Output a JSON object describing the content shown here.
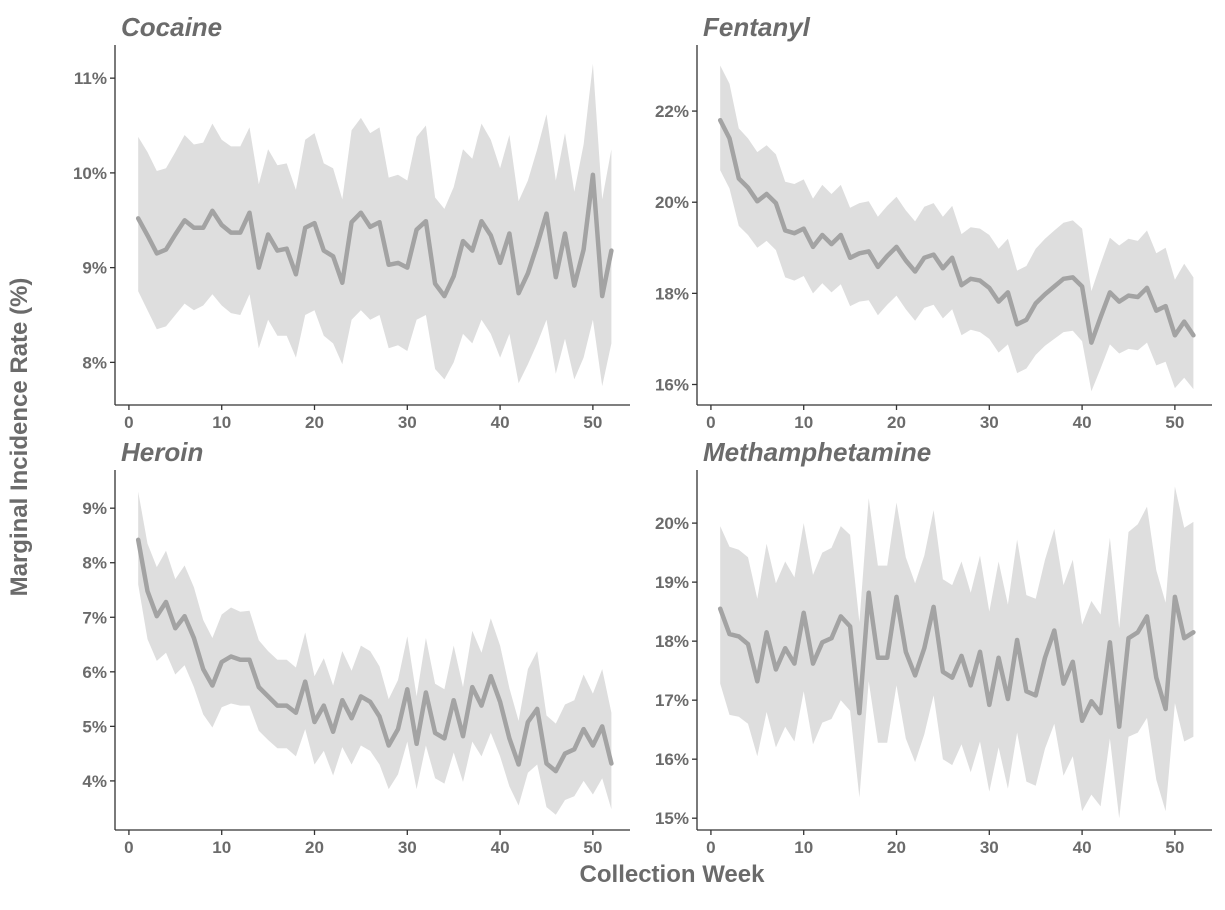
{
  "figure": {
    "xlabel": "Collection Week",
    "ylabel": "Marginal Incidence Rate (%)"
  },
  "chart_data": [
    {
      "type": "line",
      "title": "Cocaine",
      "xlabel": "Collection Week",
      "ylabel": "Marginal Incidence Rate (%)",
      "ylim": [
        7.55,
        11.35
      ],
      "xlim": [
        -1.5,
        54
      ],
      "xticks": [
        0,
        10,
        20,
        30,
        40,
        50
      ],
      "yticks": [
        8,
        9,
        10,
        11
      ],
      "ytick_labels": [
        "8%",
        "9%",
        "10%",
        "11%"
      ],
      "band": "confidence interval",
      "x": [
        1,
        2,
        3,
        4,
        5,
        6,
        7,
        8,
        9,
        10,
        11,
        12,
        13,
        14,
        15,
        16,
        17,
        18,
        19,
        20,
        21,
        22,
        23,
        24,
        25,
        26,
        27,
        28,
        29,
        30,
        31,
        32,
        33,
        34,
        35,
        36,
        37,
        38,
        39,
        40,
        41,
        42,
        43,
        44,
        45,
        46,
        47,
        48,
        49,
        50,
        51,
        52
      ],
      "y": [
        9.52,
        9.34,
        9.15,
        9.19,
        9.35,
        9.5,
        9.42,
        9.42,
        9.6,
        9.45,
        9.37,
        9.37,
        9.58,
        9.0,
        9.35,
        9.18,
        9.2,
        8.93,
        9.42,
        9.47,
        9.18,
        9.12,
        8.84,
        9.48,
        9.58,
        9.43,
        9.48,
        9.03,
        9.05,
        9.0,
        9.4,
        9.49,
        8.83,
        8.7,
        8.91,
        9.28,
        9.18,
        9.49,
        9.34,
        9.05,
        9.36,
        8.73,
        8.94,
        9.24,
        9.57,
        8.9,
        9.36,
        8.81,
        9.19,
        9.98,
        8.7,
        9.18
      ],
      "y_lower": [
        8.75,
        8.55,
        8.35,
        8.38,
        8.5,
        8.62,
        8.55,
        8.6,
        8.72,
        8.6,
        8.52,
        8.5,
        8.72,
        8.15,
        8.45,
        8.28,
        8.28,
        8.05,
        8.5,
        8.55,
        8.28,
        8.2,
        7.98,
        8.45,
        8.55,
        8.45,
        8.5,
        8.15,
        8.18,
        8.12,
        8.45,
        8.5,
        7.93,
        7.82,
        8.0,
        8.3,
        8.2,
        8.45,
        8.3,
        8.05,
        8.3,
        7.78,
        7.98,
        8.2,
        8.45,
        7.88,
        8.25,
        7.82,
        8.05,
        8.45,
        7.75,
        8.2
      ],
      "y_upper": [
        10.38,
        10.22,
        10.02,
        10.05,
        10.22,
        10.4,
        10.3,
        10.32,
        10.52,
        10.35,
        10.28,
        10.28,
        10.48,
        9.88,
        10.25,
        10.08,
        10.1,
        9.82,
        10.35,
        10.42,
        10.1,
        10.05,
        9.72,
        10.45,
        10.58,
        10.42,
        10.48,
        9.95,
        9.98,
        9.92,
        10.38,
        10.5,
        9.74,
        9.62,
        9.85,
        10.25,
        10.15,
        10.52,
        10.35,
        10.05,
        10.4,
        9.7,
        9.92,
        10.25,
        10.62,
        9.92,
        10.42,
        9.8,
        10.3,
        11.15,
        9.72,
        10.25
      ]
    },
    {
      "type": "line",
      "title": "Fentanyl",
      "xlabel": "Collection Week",
      "ylabel": "Marginal Incidence Rate (%)",
      "ylim": [
        15.55,
        23.45
      ],
      "xlim": [
        -1.5,
        54
      ],
      "xticks": [
        0,
        10,
        20,
        30,
        40,
        50
      ],
      "yticks": [
        16,
        18,
        20,
        22
      ],
      "ytick_labels": [
        "16%",
        "18%",
        "20%",
        "22%"
      ],
      "band": "confidence interval",
      "x": [
        1,
        2,
        3,
        4,
        5,
        6,
        7,
        8,
        9,
        10,
        11,
        12,
        13,
        14,
        15,
        16,
        17,
        18,
        19,
        20,
        21,
        22,
        23,
        24,
        25,
        26,
        27,
        28,
        29,
        30,
        31,
        32,
        33,
        34,
        35,
        36,
        37,
        38,
        39,
        40,
        41,
        42,
        43,
        44,
        45,
        46,
        47,
        48,
        49,
        50,
        51,
        52
      ],
      "y": [
        21.8,
        21.4,
        20.52,
        20.32,
        20.02,
        20.18,
        19.98,
        19.38,
        19.32,
        19.42,
        19.02,
        19.28,
        19.08,
        19.28,
        18.78,
        18.88,
        18.92,
        18.58,
        18.82,
        19.02,
        18.72,
        18.48,
        18.78,
        18.85,
        18.55,
        18.78,
        18.18,
        18.32,
        18.28,
        18.12,
        17.82,
        18.02,
        17.32,
        17.42,
        17.78,
        17.98,
        18.15,
        18.32,
        18.35,
        18.15,
        16.92,
        17.48,
        18.02,
        17.82,
        17.95,
        17.92,
        18.12,
        17.62,
        17.72,
        17.08,
        17.38,
        17.08
      ],
      "y_lower": [
        20.7,
        20.3,
        19.48,
        19.28,
        19.0,
        19.15,
        18.95,
        18.35,
        18.28,
        18.38,
        18.0,
        18.22,
        18.02,
        18.2,
        17.72,
        17.82,
        17.85,
        17.52,
        17.75,
        17.95,
        17.65,
        17.4,
        17.68,
        17.75,
        17.45,
        17.65,
        17.08,
        17.2,
        17.15,
        17.0,
        16.7,
        16.88,
        16.25,
        16.35,
        16.65,
        16.85,
        17.0,
        17.15,
        17.18,
        16.95,
        15.85,
        16.35,
        16.88,
        16.68,
        16.78,
        16.75,
        16.92,
        16.42,
        16.5,
        15.92,
        16.15,
        15.9
      ],
      "y_upper": [
        23.0,
        22.6,
        21.62,
        21.4,
        21.1,
        21.25,
        21.05,
        20.45,
        20.4,
        20.5,
        20.08,
        20.38,
        20.18,
        20.38,
        19.88,
        19.98,
        20.02,
        19.68,
        19.92,
        20.12,
        19.82,
        19.58,
        19.9,
        19.98,
        19.68,
        19.92,
        19.3,
        19.45,
        19.42,
        19.28,
        18.98,
        19.2,
        18.5,
        18.6,
        18.98,
        19.2,
        19.38,
        19.55,
        19.6,
        19.42,
        18.05,
        18.65,
        19.22,
        19.05,
        19.2,
        19.15,
        19.38,
        18.88,
        19.0,
        18.3,
        18.65,
        18.35
      ]
    },
    {
      "type": "line",
      "title": "Heroin",
      "xlabel": "Collection Week",
      "ylabel": "Marginal Incidence Rate (%)",
      "ylim": [
        3.1,
        9.7
      ],
      "xlim": [
        -1.5,
        54
      ],
      "xticks": [
        0,
        10,
        20,
        30,
        40,
        50
      ],
      "yticks": [
        4,
        5,
        6,
        7,
        8,
        9
      ],
      "ytick_labels": [
        "4%",
        "5%",
        "6%",
        "7%",
        "8%",
        "9%"
      ],
      "band": "confidence interval",
      "x": [
        1,
        2,
        3,
        4,
        5,
        6,
        7,
        8,
        9,
        10,
        11,
        12,
        13,
        14,
        15,
        16,
        17,
        18,
        19,
        20,
        21,
        22,
        23,
        24,
        25,
        26,
        27,
        28,
        29,
        30,
        31,
        32,
        33,
        34,
        35,
        36,
        37,
        38,
        39,
        40,
        41,
        42,
        43,
        44,
        45,
        46,
        47,
        48,
        49,
        50,
        51,
        52
      ],
      "y": [
        8.42,
        7.48,
        7.02,
        7.28,
        6.8,
        7.02,
        6.62,
        6.05,
        5.75,
        6.18,
        6.28,
        6.22,
        6.22,
        5.72,
        5.55,
        5.38,
        5.38,
        5.25,
        5.82,
        5.08,
        5.38,
        4.9,
        5.48,
        5.15,
        5.55,
        5.45,
        5.18,
        4.65,
        4.95,
        5.68,
        4.68,
        5.62,
        4.88,
        4.78,
        5.48,
        4.82,
        5.72,
        5.38,
        5.92,
        5.45,
        4.78,
        4.3,
        5.08,
        5.32,
        4.32,
        4.18,
        4.5,
        4.58,
        4.95,
        4.65,
        5.0,
        4.32
      ],
      "y_lower": [
        7.6,
        6.6,
        6.2,
        6.35,
        5.95,
        6.12,
        5.72,
        5.22,
        4.98,
        5.35,
        5.42,
        5.38,
        5.38,
        4.92,
        4.75,
        4.6,
        4.6,
        4.45,
        4.95,
        4.3,
        4.55,
        4.1,
        4.62,
        4.3,
        4.65,
        4.55,
        4.3,
        3.85,
        4.12,
        4.72,
        3.85,
        4.65,
        4.05,
        3.95,
        4.52,
        3.98,
        4.72,
        4.45,
        4.88,
        4.45,
        3.9,
        3.55,
        4.15,
        4.3,
        3.52,
        3.38,
        3.65,
        3.72,
        4.0,
        3.75,
        4.05,
        3.48
      ],
      "y_upper": [
        9.3,
        8.35,
        7.92,
        8.22,
        7.7,
        7.95,
        7.55,
        6.95,
        6.62,
        7.05,
        7.18,
        7.1,
        7.12,
        6.58,
        6.38,
        6.22,
        6.22,
        6.08,
        6.72,
        5.92,
        6.25,
        5.75,
        6.38,
        6.02,
        6.48,
        6.38,
        6.1,
        5.5,
        5.85,
        6.65,
        5.55,
        6.62,
        5.78,
        5.68,
        6.48,
        5.72,
        6.75,
        6.35,
        6.98,
        6.48,
        5.7,
        5.1,
        6.05,
        6.38,
        5.2,
        5.05,
        5.4,
        5.48,
        5.95,
        5.6,
        6.05,
        5.25
      ]
    },
    {
      "type": "line",
      "title": "Methamphetamine",
      "xlabel": "Collection Week",
      "ylabel": "Marginal Incidence Rate (%)",
      "ylim": [
        14.8,
        20.9
      ],
      "xlim": [
        -1.5,
        54
      ],
      "xticks": [
        0,
        10,
        20,
        30,
        40,
        50
      ],
      "yticks": [
        15,
        16,
        17,
        18,
        19,
        20
      ],
      "ytick_labels": [
        "15%",
        "16%",
        "17%",
        "18%",
        "19%",
        "20%"
      ],
      "band": "confidence interval",
      "x": [
        1,
        2,
        3,
        4,
        5,
        6,
        7,
        8,
        9,
        10,
        11,
        12,
        13,
        14,
        15,
        16,
        17,
        18,
        19,
        20,
        21,
        22,
        23,
        24,
        25,
        26,
        27,
        28,
        29,
        30,
        31,
        32,
        33,
        34,
        35,
        36,
        37,
        38,
        39,
        40,
        41,
        42,
        43,
        44,
        45,
        46,
        47,
        48,
        49,
        50,
        51,
        52
      ],
      "y": [
        18.55,
        18.12,
        18.08,
        17.95,
        17.32,
        18.15,
        17.52,
        17.88,
        17.62,
        18.48,
        17.62,
        17.98,
        18.05,
        18.42,
        18.25,
        16.78,
        18.82,
        17.72,
        17.72,
        18.75,
        17.82,
        17.42,
        17.88,
        18.58,
        17.48,
        17.38,
        17.75,
        17.25,
        17.82,
        16.92,
        17.72,
        17.02,
        18.02,
        17.15,
        17.08,
        17.72,
        18.18,
        17.28,
        17.65,
        16.65,
        16.98,
        16.78,
        17.98,
        16.55,
        18.05,
        18.15,
        18.42,
        17.38,
        16.85,
        18.75,
        18.05,
        18.15
      ],
      "y_lower": [
        17.28,
        16.75,
        16.72,
        16.6,
        16.05,
        16.8,
        16.2,
        16.55,
        16.3,
        17.15,
        16.25,
        16.62,
        16.68,
        17.0,
        16.82,
        15.35,
        17.32,
        16.28,
        16.28,
        17.25,
        16.35,
        15.95,
        16.42,
        17.08,
        16.0,
        15.9,
        16.25,
        15.78,
        16.3,
        15.45,
        16.2,
        15.5,
        16.45,
        15.62,
        15.55,
        16.18,
        16.6,
        15.72,
        16.05,
        15.12,
        15.4,
        15.2,
        16.35,
        15.0,
        16.38,
        16.45,
        16.7,
        15.65,
        15.12,
        16.95,
        16.3,
        16.38
      ],
      "y_upper": [
        19.95,
        19.6,
        19.55,
        19.42,
        18.72,
        19.65,
        18.98,
        19.35,
        19.08,
        20.0,
        19.12,
        19.5,
        19.58,
        19.95,
        19.8,
        18.32,
        20.42,
        19.28,
        19.28,
        20.35,
        19.42,
        18.98,
        19.45,
        20.22,
        19.05,
        18.95,
        19.35,
        18.82,
        19.45,
        18.5,
        19.35,
        18.62,
        19.72,
        18.78,
        18.72,
        19.38,
        19.9,
        18.95,
        19.38,
        18.28,
        18.68,
        18.45,
        19.75,
        18.22,
        19.85,
        19.98,
        20.28,
        19.2,
        18.65,
        20.62,
        19.92,
        20.02
      ]
    }
  ]
}
